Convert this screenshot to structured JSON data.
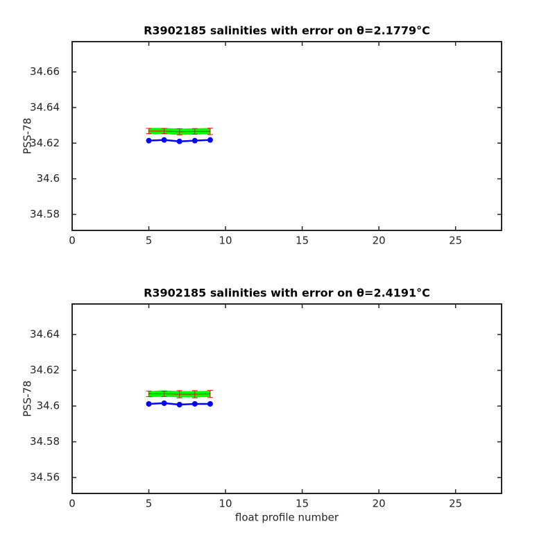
{
  "chart_data": [
    {
      "type": "errorline",
      "title": "R3902185 salinities with error on θ=2.1779°C",
      "ylabel": "PSS-78",
      "x": [
        5,
        6,
        7,
        8,
        9
      ],
      "xlim": [
        0,
        28
      ],
      "xticks": [
        0,
        5,
        10,
        15,
        20,
        25
      ],
      "ylim": [
        34.571,
        34.677
      ],
      "yticks": [
        34.58,
        34.6,
        34.62,
        34.64,
        34.66
      ],
      "series": [
        {
          "style": "band",
          "color": "#00ff00",
          "values": [
            34.6268,
            34.6268,
            34.6264,
            34.6266,
            34.6268
          ]
        },
        {
          "style": "errorbar",
          "color": "#ff0000",
          "values": [
            34.6268,
            34.6268,
            34.6264,
            34.6266,
            34.6266
          ],
          "errors": [
            0.0015,
            0.0015,
            0.0017,
            0.0016,
            0.0018
          ]
        },
        {
          "style": "line",
          "color": "#0000ff",
          "values": [
            34.6214,
            34.6218,
            34.621,
            34.6214,
            34.6218
          ]
        }
      ]
    },
    {
      "type": "errorline",
      "title": "R3902185 salinities with error on θ=2.4191°C",
      "ylabel": "PSS-78",
      "xlabel": "float profile number",
      "x": [
        5,
        6,
        7,
        8,
        9
      ],
      "xlim": [
        0,
        28
      ],
      "xticks": [
        0,
        5,
        10,
        15,
        20,
        25
      ],
      "ylim": [
        34.5511,
        34.6571
      ],
      "yticks": [
        34.56,
        34.58,
        34.6,
        34.62,
        34.64
      ],
      "series": [
        {
          "style": "band",
          "color": "#00ff00",
          "values": [
            34.6066,
            34.607,
            34.6066,
            34.6066,
            34.6068
          ]
        },
        {
          "style": "errorbar",
          "color": "#ff0000",
          "values": [
            34.6068,
            34.6068,
            34.6066,
            34.6066,
            34.6068
          ],
          "errors": [
            0.0015,
            0.0015,
            0.002,
            0.002,
            0.002
          ]
        },
        {
          "style": "line",
          "color": "#0000ff",
          "values": [
            34.6012,
            34.6016,
            34.6008,
            34.6012,
            34.6012
          ]
        }
      ]
    }
  ]
}
